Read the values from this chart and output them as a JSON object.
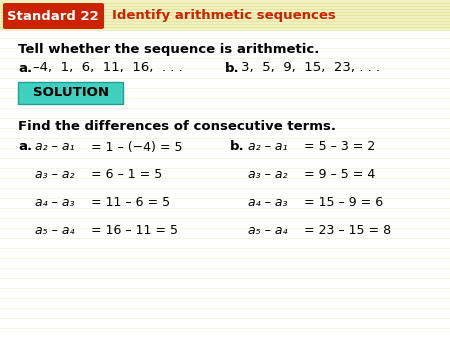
{
  "bg_color": "#fafaf0",
  "header_bg": "#cc2200",
  "header_title_color": "#cc2200",
  "header_label": "Standard 22",
  "header_title": "Identify arithmetic sequences",
  "tell_line": "Tell whether the sequence is arithmetic.",
  "a_label": "a.",
  "a_seq": "–4,  1,  6,  11,  16,  . . .",
  "b_label": "b.",
  "b_seq": "3,  5,  9,  15,  23, . . .",
  "solution_text": "SOLUTION",
  "solution_bg": "#40d0c0",
  "find_line": "Find the differences of consecutive terms.",
  "col_a_label": "a.",
  "col_b_label": "b.",
  "col_a_lines_plain": [
    " = 1 – (−4) = 5",
    " = 6 – 1 = 5",
    " = 11 – 6 = 5",
    " = 16 – 11 = 5"
  ],
  "col_b_lines_plain": [
    " = 5 – 3 = 2",
    " = 9 – 5 = 4",
    " = 15 – 9 = 6",
    " = 23 – 15 = 8"
  ],
  "col_a_prefix": [
    "a₂ – a₁",
    "a₃ – a₂",
    "a₄ – a₃",
    "a₅ – a₄"
  ],
  "col_b_prefix": [
    "a₂ – a₁",
    "a₃ – a₂",
    "a₄ – a₃",
    "a₅ – a₄"
  ],
  "header_stripe_color": "#e8e8c0",
  "white_bg": "#ffffff"
}
